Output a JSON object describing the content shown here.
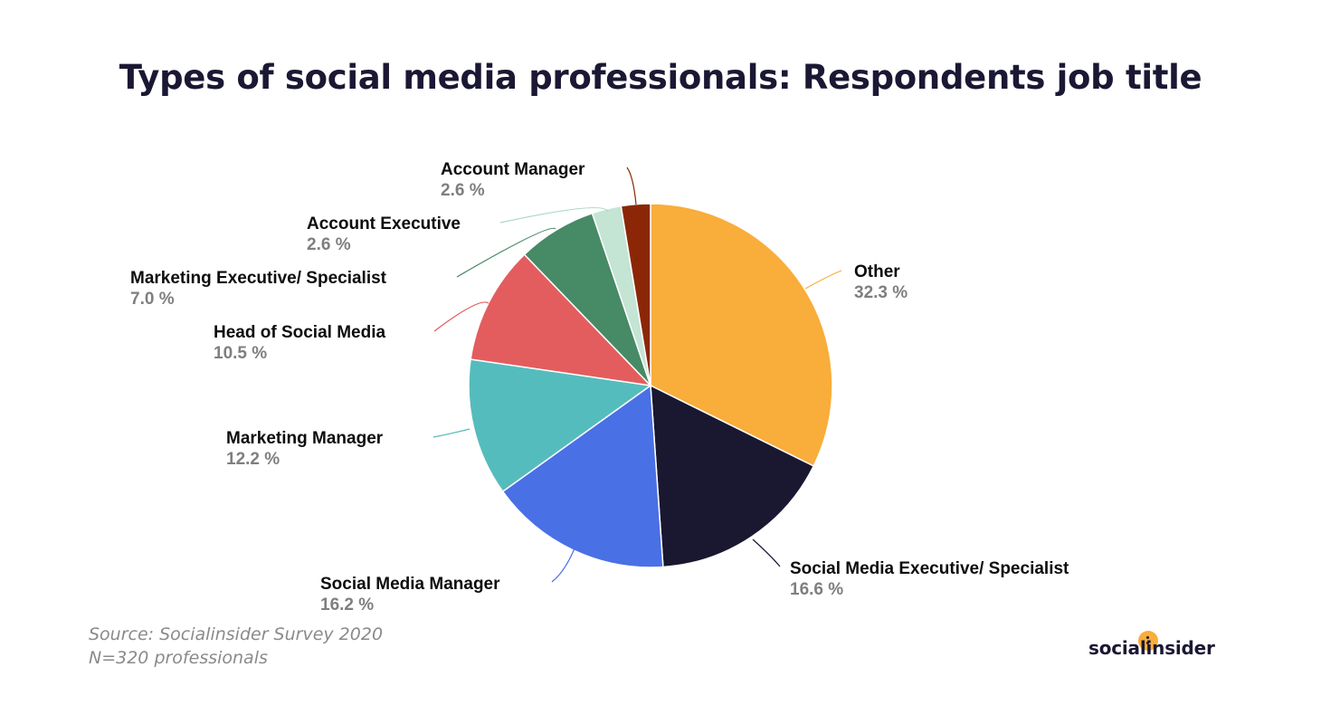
{
  "title": "Types of social media professionals: Respondents job title",
  "chart_data": {
    "type": "pie",
    "title": "Types of social media professionals: Respondents job title",
    "slices": [
      {
        "label": "Other",
        "value": 32.3,
        "display": "32.3 %",
        "color": "#f9ad3a"
      },
      {
        "label": "Social Media Executive/ Specialist",
        "value": 16.6,
        "display": "16.6 %",
        "color": "#1a1731"
      },
      {
        "label": "Social Media Manager",
        "value": 16.2,
        "display": "16.2 %",
        "color": "#4a70e6"
      },
      {
        "label": "Marketing Manager",
        "value": 12.2,
        "display": "12.2 %",
        "color": "#55bcbd"
      },
      {
        "label": "Head of Social Media",
        "value": 10.5,
        "display": "10.5 %",
        "color": "#e35d5e"
      },
      {
        "label": "Marketing Executive/ Specialist",
        "value": 7.0,
        "display": "7.0 %",
        "color": "#478a66"
      },
      {
        "label": "Account Executive",
        "value": 2.6,
        "display": "2.6 %",
        "color": "#c4e4d4"
      },
      {
        "label": "Account Manager",
        "value": 2.6,
        "display": "2.6 %",
        "color": "#8b2707"
      }
    ],
    "start_angle": "12 o'clock",
    "direction": "clockwise"
  },
  "source": {
    "line1": "Source: Socialinsider Survey 2020",
    "line2": "N=320 professionals"
  },
  "brand": {
    "name": "socialinsider"
  }
}
